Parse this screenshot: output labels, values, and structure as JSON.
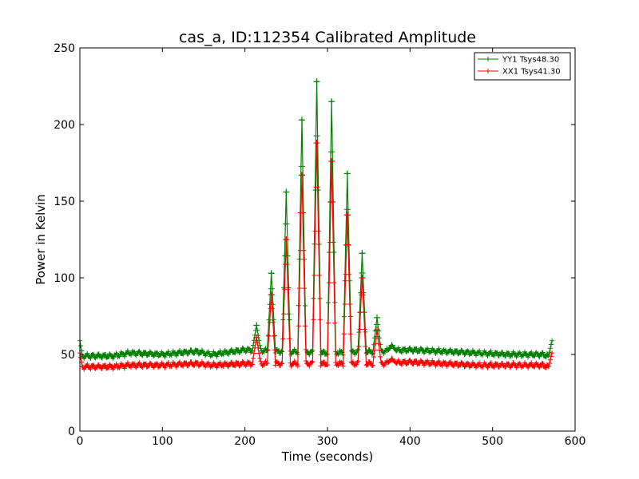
{
  "chart_data": {
    "type": "line",
    "title": "cas_a, ID:112354 Calibrated Amplitude",
    "xlabel": "Time (seconds)",
    "ylabel": "Power in Kelvin",
    "xlim": [
      0,
      600
    ],
    "ylim": [
      0,
      250
    ],
    "xticks": [
      "0",
      "100",
      "200",
      "300",
      "400",
      "500",
      "600"
    ],
    "yticks": [
      "0",
      "50",
      "100",
      "150",
      "200",
      "250"
    ],
    "grid": false,
    "legend_position": "top-right",
    "series": [
      {
        "name": "YY1 Tsys48.30",
        "color": "#008000",
        "marker": "plus",
        "baseline_profile": [
          [
            0,
            59
          ],
          [
            3,
            49
          ],
          [
            40,
            49
          ],
          [
            60,
            51
          ],
          [
            100,
            50
          ],
          [
            140,
            52
          ],
          [
            160,
            50
          ],
          [
            200,
            53
          ],
          [
            240,
            52
          ],
          [
            300,
            51
          ],
          [
            360,
            52
          ],
          [
            400,
            53
          ],
          [
            440,
            52
          ],
          [
            480,
            51
          ],
          [
            520,
            50
          ],
          [
            560,
            50
          ],
          [
            568,
            49
          ],
          [
            572,
            59
          ]
        ],
        "peaks": [
          [
            214,
            69
          ],
          [
            232,
            103
          ],
          [
            250,
            156
          ],
          [
            269,
            203
          ],
          [
            287,
            228
          ],
          [
            305,
            215
          ],
          [
            324,
            168
          ],
          [
            342,
            116
          ],
          [
            360,
            74
          ],
          [
            378,
            56
          ]
        ]
      },
      {
        "name": "XX1 Tsys41.30",
        "color": "#ff0000",
        "marker": "plus",
        "baseline_profile": [
          [
            0,
            51
          ],
          [
            3,
            42
          ],
          [
            40,
            42
          ],
          [
            60,
            43
          ],
          [
            100,
            43
          ],
          [
            140,
            44
          ],
          [
            160,
            43
          ],
          [
            200,
            44
          ],
          [
            240,
            44
          ],
          [
            300,
            44
          ],
          [
            360,
            44
          ],
          [
            400,
            45
          ],
          [
            440,
            44
          ],
          [
            480,
            43
          ],
          [
            520,
            43
          ],
          [
            560,
            43
          ],
          [
            568,
            42
          ],
          [
            572,
            51
          ]
        ],
        "peaks": [
          [
            214,
            61
          ],
          [
            232,
            89
          ],
          [
            250,
            125
          ],
          [
            269,
            167
          ],
          [
            287,
            188
          ],
          [
            305,
            176
          ],
          [
            324,
            141
          ],
          [
            342,
            100
          ],
          [
            360,
            66
          ],
          [
            378,
            47
          ]
        ]
      }
    ]
  }
}
